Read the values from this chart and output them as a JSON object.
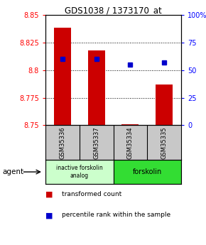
{
  "title": "GDS1038 / 1373170_at",
  "samples": [
    "GSM35336",
    "GSM35337",
    "GSM35334",
    "GSM35335"
  ],
  "bar_values": [
    8.838,
    8.818,
    8.751,
    8.787
  ],
  "bar_base": 8.75,
  "percentile_pct": [
    60,
    60,
    55,
    57
  ],
  "ylim": [
    8.75,
    8.85
  ],
  "yticks": [
    8.75,
    8.775,
    8.8,
    8.825,
    8.85
  ],
  "ytick_labels": [
    "8.75",
    "8.775",
    "8.8",
    "8.825",
    "8.85"
  ],
  "y2ticks": [
    0,
    25,
    50,
    75,
    100
  ],
  "y2tick_labels": [
    "0",
    "25",
    "50",
    "75",
    "100%"
  ],
  "bar_color": "#cc0000",
  "dot_color": "#0000cc",
  "group1_samples": [
    0,
    1
  ],
  "group2_samples": [
    2,
    3
  ],
  "group1_label": "inactive forskolin\nanalog",
  "group2_label": "forskolin",
  "group1_color": "#ccffcc",
  "group2_color": "#33dd33",
  "agent_label": "agent",
  "bar_width": 0.5,
  "dot_size": 5
}
